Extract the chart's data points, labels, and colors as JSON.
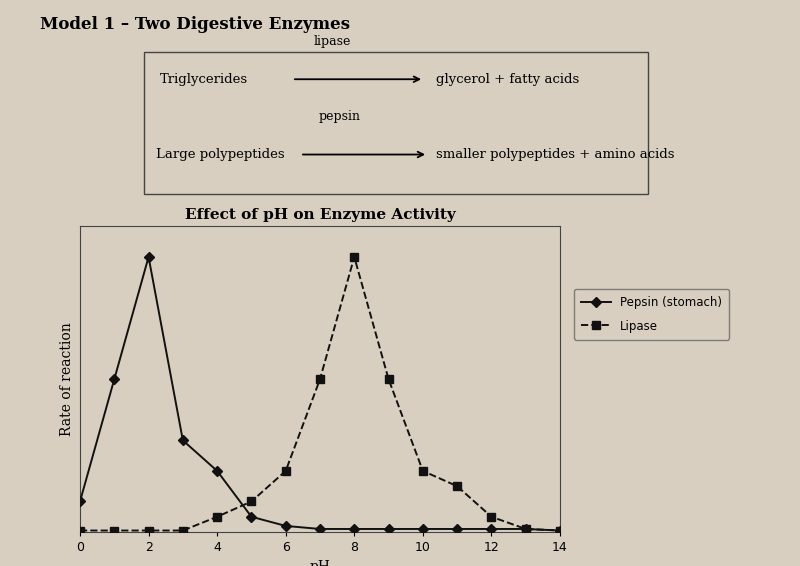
{
  "title_model": "Model 1 – Two Digestive Enzymes",
  "chart_title": "Effect of pH on Enzyme Activity",
  "xlabel": "pH",
  "ylabel": "Rate of reaction",
  "x_ticks": [
    0,
    2,
    4,
    6,
    8,
    10,
    12,
    14
  ],
  "xlim": [
    0,
    14
  ],
  "pepsin_x": [
    0,
    1,
    2,
    3,
    4,
    5,
    6,
    7,
    8,
    9,
    10,
    11,
    12,
    13,
    14
  ],
  "pepsin_y": [
    1,
    5,
    9,
    3,
    2,
    0.5,
    0.2,
    0.1,
    0.1,
    0.1,
    0.1,
    0.1,
    0.1,
    0.1,
    0.05
  ],
  "lipase_x": [
    0,
    1,
    2,
    3,
    4,
    5,
    6,
    7,
    8,
    9,
    10,
    11,
    12,
    13,
    14
  ],
  "lipase_y": [
    0.05,
    0.05,
    0.05,
    0.05,
    0.5,
    1.0,
    2.0,
    5,
    9,
    5,
    2.0,
    1.5,
    0.5,
    0.1,
    0.05
  ],
  "pepsin_color": "#111111",
  "lipase_color": "#111111",
  "legend_pepsin": "Pepsin (stomach)",
  "legend_lipase": "Lipase",
  "ylim": [
    0,
    10
  ],
  "background_color": "#d8cfc0",
  "reaction1_left": "Triglycerides",
  "reaction1_enzyme": "lipase",
  "reaction1_right": "glycerol + fatty acids",
  "reaction2_left": "Large polypeptides",
  "reaction2_enzyme": "pepsin",
  "reaction2_right": "smaller polypeptides + amino acids"
}
